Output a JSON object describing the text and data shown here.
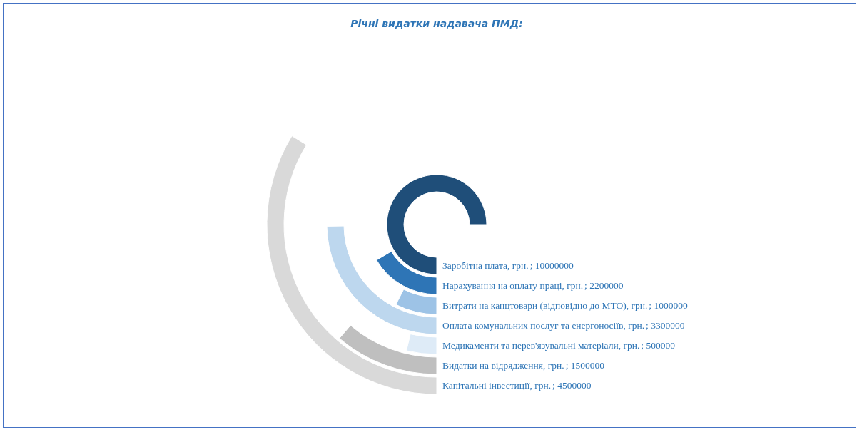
{
  "chart_data": {
    "type": "other",
    "title": "Річні видатки надавача ПМД:",
    "categories": [
      "Заробітна плата, грн.",
      "Нарахування на оплату праці, грн.",
      "Витрати на канцтовари (відповідно до МТО), грн.",
      "Оплата комунальних послуг та енергоносіїв, грн.",
      "Медикаменти та перев'язувальні матеріали, грн.",
      "Видатки на відрядження, грн.",
      "Капітальні інвестиції, грн."
    ],
    "values": [
      10000000,
      2200000,
      1000000,
      3300000,
      500000,
      1500000,
      4500000
    ],
    "value_labels": [
      "; 10000000",
      "; 2200000",
      "; 1000000",
      "; 3300000",
      "; 500000",
      "; 1500000",
      "; 4500000"
    ],
    "colors": [
      "#1f4e79",
      "#2e75b6",
      "#9dc3e6",
      "#bdd7ee",
      "#deebf7",
      "#bfbfbf",
      "#d9d9d9"
    ]
  }
}
